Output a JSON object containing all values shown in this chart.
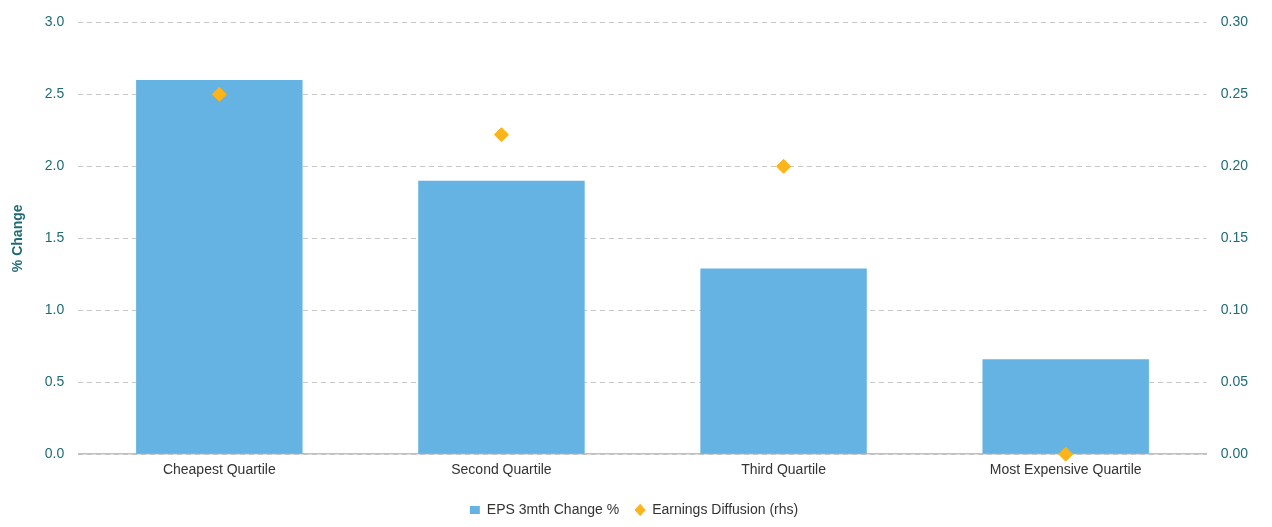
{
  "chart_data": {
    "type": "bar",
    "ylabel": "% Change",
    "categories": [
      "Cheapest Quartile",
      "Second Quartile",
      "Third Quartile",
      "Most Expensive Quartile"
    ],
    "series": [
      {
        "name": "EPS 3mth Change %",
        "color": "#65b3e3",
        "values": [
          2.6,
          1.9,
          1.29,
          0.66
        ]
      },
      {
        "name": "Earnings Diffusion (rhs)",
        "type": "scatter",
        "axis": "y2",
        "color": "#fbb51a",
        "x": [
          "Cheapest Quartile",
          "Second Quartile",
          "Third Quartile",
          "Most Expensive Quartile"
        ],
        "values": [
          0.25,
          0.222,
          0.2,
          0.0
        ]
      }
    ],
    "ylim": [
      0,
      3
    ],
    "yticks": [
      {
        "value": 0,
        "label": "0.0"
      },
      {
        "value": 0.5,
        "label": "0.5"
      },
      {
        "value": 1,
        "label": "1.0"
      },
      {
        "value": 1.5,
        "label": "1.5"
      },
      {
        "value": 2,
        "label": "2.0"
      },
      {
        "value": 2.5,
        "label": "2.5"
      },
      {
        "value": 3,
        "label": "3.0"
      }
    ],
    "y2lim": [
      0,
      0.3
    ],
    "y2ticks": [
      {
        "value": 0,
        "label": "0.00"
      },
      {
        "value": 0.05,
        "label": "0.05"
      },
      {
        "value": 0.1,
        "label": "0.10"
      },
      {
        "value": 0.15,
        "label": "0.15"
      },
      {
        "value": 0.2,
        "label": "0.20"
      },
      {
        "value": 0.25,
        "label": "0.25"
      },
      {
        "value": 0.3,
        "label": "0.30"
      }
    ],
    "grid": "y",
    "legend": "bottom",
    "marker": "diamond"
  }
}
